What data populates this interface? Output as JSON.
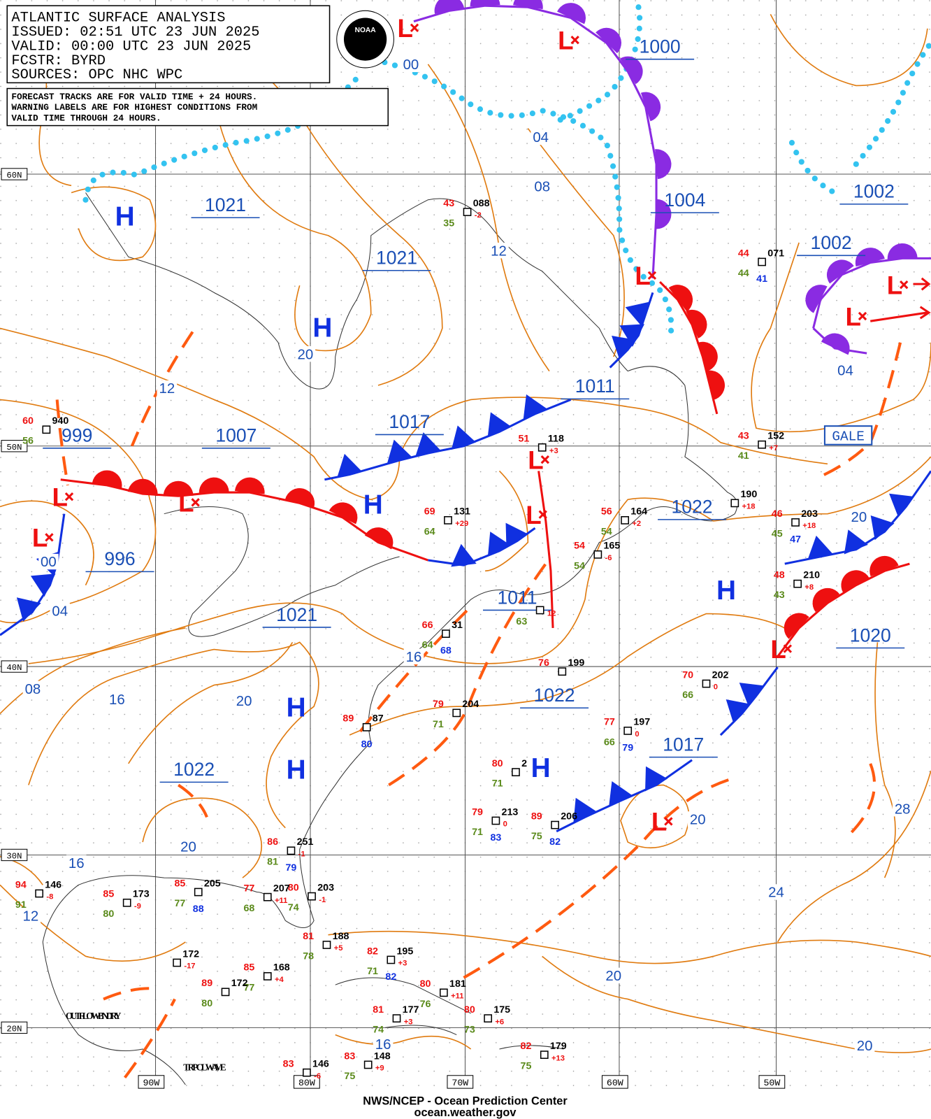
{
  "header": {
    "lines": [
      "ATLANTIC SURFACE ANALYSIS",
      "ISSUED: 02:51 UTC 23 JUN 2025",
      "VALID:  00:00 UTC 23 JUN 2025",
      "FCSTR:   BYRD",
      "SOURCES: OPC NHC WPC"
    ],
    "logo": "NOAA"
  },
  "notes": [
    "FORECAST TRACKS ARE FOR VALID TIME + 24 HOURS.",
    "WARNING LABELS ARE FOR HIGHEST CONDITIONS FROM",
    "VALID TIME THROUGH 24 HOURS."
  ],
  "lat_labels": [
    "60N",
    "50N",
    "40N",
    "30N",
    "20N"
  ],
  "lon_labels": [
    "90W",
    "80W",
    "70W",
    "60W",
    "50W"
  ],
  "highs": [
    "H",
    "H",
    "H",
    "H",
    "H",
    "H",
    "H"
  ],
  "lows": [
    "L",
    "L",
    "L",
    "L",
    "L",
    "L",
    "L",
    "L",
    "L",
    "L",
    "L",
    "L"
  ],
  "pressure_labels": [
    "1000",
    "1021",
    "1021",
    "1004",
    "1002",
    "1002",
    "1011",
    "1017",
    "999",
    "1007",
    "1022",
    "996",
    "1011",
    "1021",
    "1020",
    "1022",
    "1017",
    "1022"
  ],
  "isobar_labels": [
    "00",
    "04",
    "08",
    "12",
    "20",
    "12",
    "04",
    "20",
    "00",
    "04",
    "16",
    "08",
    "16",
    "20",
    "20",
    "28",
    "20",
    "16",
    "12",
    "24",
    "20",
    "16",
    "20"
  ],
  "warnings": [
    "GALE"
  ],
  "annotations": [
    "OUTFLOW BNDRY",
    "TRPCL WAVE"
  ],
  "stations": [
    {
      "temp": "43",
      "pressure": "088",
      "dew": "35",
      "tend": "-2"
    },
    {
      "temp": "44",
      "pressure": "071",
      "dew": "44",
      "extra": "41"
    },
    {
      "temp": "60",
      "pressure": "940",
      "dew": "56"
    },
    {
      "temp": "43",
      "pressure": "152",
      "dew": "41",
      "tend": "+7"
    },
    {
      "temp": "51",
      "pressure": "118",
      "tend": "+3"
    },
    {
      "temp": "69",
      "pressure": "131",
      "dew": "64",
      "tend": "+29"
    },
    {
      "temp": "56",
      "pressure": "164",
      "dew": "54",
      "tend": "+2"
    },
    {
      "pressure": "190",
      "tend": "+18"
    },
    {
      "temp": "46",
      "pressure": "203",
      "dew": "45",
      "tend": "+18",
      "extra": "47"
    },
    {
      "temp": "54",
      "pressure": "165",
      "dew": "54",
      "tend": "-6"
    },
    {
      "temp": "48",
      "pressure": "210",
      "dew": "43",
      "tend": "+8"
    },
    {
      "dew": "63",
      "tend": "12"
    },
    {
      "temp": "66",
      "pressure": "31",
      "dew": "64",
      "extra": "68"
    },
    {
      "temp": "76",
      "pressure": "199"
    },
    {
      "temp": "70",
      "pressure": "202",
      "dew": "66",
      "tend": "0"
    },
    {
      "temp": "79",
      "pressure": "204",
      "dew": "71"
    },
    {
      "temp": "89",
      "pressure": "87",
      "extra": "80"
    },
    {
      "temp": "77",
      "pressure": "197",
      "dew": "66",
      "tend": "0",
      "extra": "79"
    },
    {
      "temp": "80",
      "pressure": "2",
      "dew": "71"
    },
    {
      "temp": "79",
      "pressure": "213",
      "dew": "71",
      "tend": "0",
      "extra": "83"
    },
    {
      "temp": "89",
      "pressure": "206",
      "dew": "75",
      "extra": "82"
    },
    {
      "temp": "86",
      "pressure": "251",
      "dew": "81",
      "tend": "-1",
      "extra": "79"
    },
    {
      "temp": "80",
      "pressure": "203",
      "dew": "74",
      "tend": "-1"
    },
    {
      "temp": "77",
      "pressure": "207",
      "dew": "68",
      "tend": "+11"
    },
    {
      "temp": "85",
      "pressure": "205",
      "dew": "77",
      "extra": "88"
    },
    {
      "temp": "85",
      "pressure": "173",
      "dew": "80",
      "tend": "-9"
    },
    {
      "temp": "94",
      "pressure": "146",
      "dew": "91",
      "tend": "-8"
    },
    {
      "temp": "81",
      "pressure": "188",
      "dew": "78",
      "tend": "+5"
    },
    {
      "temp": "82",
      "pressure": "195",
      "dew": "71",
      "tend": "+3",
      "extra": "82"
    },
    {
      "pressure": "172",
      "tend": "-17"
    },
    {
      "temp": "85",
      "pressure": "168",
      "dew": "77",
      "tend": "+4"
    },
    {
      "temp": "89",
      "pressure": "172",
      "dew": "80"
    },
    {
      "temp": "80",
      "pressure": "181",
      "dew": "76",
      "tend": "+11"
    },
    {
      "temp": "81",
      "pressure": "177",
      "dew": "74",
      "tend": "+3"
    },
    {
      "temp": "80",
      "pressure": "175",
      "dew": "73",
      "tend": "+6"
    },
    {
      "temp": "82",
      "pressure": "179",
      "dew": "75",
      "tend": "+13"
    },
    {
      "temp": "83",
      "pressure": "146",
      "tend": "-6"
    },
    {
      "temp": "83",
      "pressure": "148",
      "dew": "75",
      "tend": "+9"
    }
  ],
  "footer": [
    "NWS/NCEP - Ocean Prediction Center",
    "ocean.weather.gov"
  ]
}
